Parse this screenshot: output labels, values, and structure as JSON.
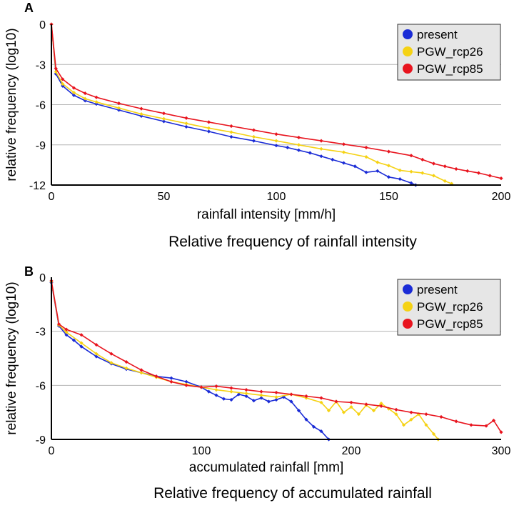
{
  "colors": {
    "present": "#1a2bd6",
    "rcp26": "#f5d214",
    "rcp85": "#e8141e",
    "grid": "#b4b4b4",
    "legend_bg": "#e6e6e6",
    "axis": "#000000"
  },
  "chart_data": [
    {
      "panel_label": "A",
      "type": "line",
      "title": "Relative frequency of rainfall intensity",
      "xlabel": "rainfall intensity [mm/h]",
      "ylabel": "relative frequency (log10)",
      "xlim": [
        0,
        200
      ],
      "ylim": [
        -12,
        0
      ],
      "xticks": [
        "0",
        "50",
        "100",
        "150",
        "200"
      ],
      "yticks": [
        "0",
        "-3",
        "-6",
        "-9",
        "-12"
      ],
      "xtick_values": [
        0,
        50,
        100,
        150,
        200
      ],
      "ytick_values": [
        0,
        -3,
        -6,
        -9,
        -12
      ],
      "grid": true,
      "legend_position": "top-right",
      "legend": [
        "present",
        "PGW_rcp26",
        "PGW_rcp85"
      ],
      "series": [
        {
          "name": "present",
          "color_key": "present",
          "x": [
            0,
            2,
            5,
            10,
            15,
            20,
            30,
            40,
            50,
            60,
            70,
            80,
            90,
            100,
            105,
            110,
            115,
            120,
            125,
            130,
            135,
            140,
            145,
            150,
            155,
            160,
            162
          ],
          "y": [
            0,
            -3.7,
            -4.6,
            -5.3,
            -5.7,
            -5.95,
            -6.4,
            -6.85,
            -7.25,
            -7.65,
            -8.0,
            -8.4,
            -8.7,
            -9.05,
            -9.2,
            -9.4,
            -9.6,
            -9.85,
            -10.1,
            -10.35,
            -10.6,
            -11.05,
            -10.95,
            -11.4,
            -11.55,
            -11.85,
            -12.0
          ]
        },
        {
          "name": "PGW_rcp26",
          "color_key": "rcp26",
          "x": [
            0,
            2,
            5,
            10,
            15,
            20,
            30,
            40,
            50,
            60,
            70,
            80,
            90,
            100,
            110,
            120,
            130,
            140,
            145,
            150,
            155,
            160,
            165,
            170,
            175,
            178
          ],
          "y": [
            0,
            -3.55,
            -4.45,
            -5.1,
            -5.55,
            -5.8,
            -6.25,
            -6.7,
            -7.05,
            -7.4,
            -7.75,
            -8.05,
            -8.4,
            -8.7,
            -9.0,
            -9.3,
            -9.55,
            -9.9,
            -10.3,
            -10.55,
            -10.9,
            -11.0,
            -11.1,
            -11.3,
            -11.7,
            -11.9
          ]
        },
        {
          "name": "PGW_rcp85",
          "color_key": "rcp85",
          "x": [
            0,
            2,
            5,
            10,
            15,
            20,
            30,
            40,
            50,
            60,
            70,
            80,
            90,
            100,
            110,
            120,
            130,
            140,
            150,
            160,
            165,
            170,
            175,
            180,
            185,
            190,
            195,
            200
          ],
          "y": [
            0,
            -3.3,
            -4.1,
            -4.75,
            -5.15,
            -5.45,
            -5.9,
            -6.3,
            -6.65,
            -7.0,
            -7.3,
            -7.6,
            -7.9,
            -8.2,
            -8.45,
            -8.7,
            -8.95,
            -9.2,
            -9.5,
            -9.8,
            -10.1,
            -10.4,
            -10.6,
            -10.8,
            -10.95,
            -11.1,
            -11.3,
            -11.5
          ]
        }
      ]
    },
    {
      "panel_label": "B",
      "type": "line",
      "title": "Relative frequency of accumulated rainfall",
      "xlabel": "accumulated rainfall [mm]",
      "ylabel": "relative frequency (log10)",
      "xlim": [
        0,
        300
      ],
      "ylim": [
        -9,
        0
      ],
      "xticks": [
        "0",
        "100",
        "200",
        "300"
      ],
      "yticks": [
        "0",
        "-3",
        "-6",
        "-9"
      ],
      "xtick_values": [
        0,
        100,
        200,
        300
      ],
      "ytick_values": [
        0,
        -3,
        -6,
        -9
      ],
      "grid": true,
      "legend_position": "top-right",
      "legend": [
        "present",
        "PGW_rcp26",
        "PGW_rcp85"
      ],
      "series": [
        {
          "name": "present",
          "color_key": "present",
          "x": [
            0,
            5,
            10,
            15,
            20,
            30,
            40,
            50,
            60,
            70,
            80,
            90,
            100,
            105,
            110,
            115,
            120,
            125,
            130,
            135,
            140,
            145,
            150,
            155,
            160,
            165,
            170,
            175,
            180,
            185
          ],
          "y": [
            -0.3,
            -2.7,
            -3.2,
            -3.5,
            -3.85,
            -4.4,
            -4.8,
            -5.1,
            -5.3,
            -5.5,
            -5.6,
            -5.8,
            -6.1,
            -6.35,
            -6.55,
            -6.75,
            -6.8,
            -6.5,
            -6.6,
            -6.85,
            -6.7,
            -6.9,
            -6.8,
            -6.65,
            -6.9,
            -7.4,
            -7.9,
            -8.3,
            -8.55,
            -9.0
          ]
        },
        {
          "name": "PGW_rcp26",
          "color_key": "rcp26",
          "x": [
            0,
            5,
            10,
            20,
            30,
            40,
            50,
            60,
            70,
            80,
            90,
            100,
            110,
            120,
            130,
            140,
            150,
            160,
            170,
            180,
            185,
            190,
            195,
            200,
            205,
            210,
            215,
            220,
            225,
            230,
            235,
            240,
            245,
            250,
            255,
            258
          ],
          "y": [
            -0.25,
            -2.65,
            -3.05,
            -3.65,
            -4.25,
            -4.75,
            -5.05,
            -5.3,
            -5.55,
            -5.8,
            -5.95,
            -6.1,
            -6.25,
            -6.35,
            -6.45,
            -6.55,
            -6.65,
            -6.5,
            -6.7,
            -6.95,
            -7.4,
            -6.9,
            -7.5,
            -7.2,
            -7.6,
            -7.1,
            -7.4,
            -7.0,
            -7.3,
            -7.6,
            -8.2,
            -7.9,
            -7.6,
            -8.2,
            -8.7,
            -9.0
          ]
        },
        {
          "name": "PGW_rcp85",
          "color_key": "rcp85",
          "x": [
            0,
            5,
            10,
            20,
            30,
            40,
            50,
            60,
            70,
            80,
            90,
            100,
            110,
            120,
            130,
            140,
            150,
            160,
            170,
            180,
            190,
            200,
            210,
            220,
            230,
            240,
            250,
            260,
            270,
            280,
            290,
            295,
            300
          ],
          "y": [
            -0.2,
            -2.6,
            -2.9,
            -3.2,
            -3.75,
            -4.25,
            -4.7,
            -5.15,
            -5.5,
            -5.8,
            -6.0,
            -6.1,
            -6.05,
            -6.15,
            -6.25,
            -6.35,
            -6.4,
            -6.5,
            -6.6,
            -6.7,
            -6.9,
            -6.95,
            -7.05,
            -7.15,
            -7.35,
            -7.5,
            -7.6,
            -7.75,
            -8.0,
            -8.2,
            -8.25,
            -7.95,
            -8.6
          ]
        }
      ]
    }
  ]
}
